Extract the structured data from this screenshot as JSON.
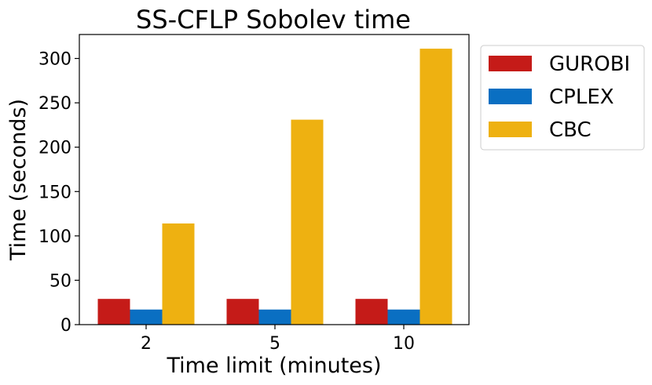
{
  "chart_data": {
    "type": "bar",
    "title": "SS-CFLP Sobolev time",
    "xlabel": "Time limit (minutes)",
    "ylabel": "Time (seconds)",
    "categories": [
      "2",
      "5",
      "10"
    ],
    "series": [
      {
        "name": "GUROBI",
        "color": "#c51b18",
        "values": [
          29,
          29,
          29
        ]
      },
      {
        "name": "CPLEX",
        "color": "#0a6fc2",
        "values": [
          17,
          17,
          17
        ]
      },
      {
        "name": "CBC",
        "color": "#eeb111",
        "values": [
          114,
          231,
          311
        ]
      }
    ],
    "ylim": [
      0,
      327
    ],
    "yticks": [
      0,
      50,
      100,
      150,
      200,
      250,
      300
    ],
    "grid": false,
    "legend": "outside-top-right"
  }
}
